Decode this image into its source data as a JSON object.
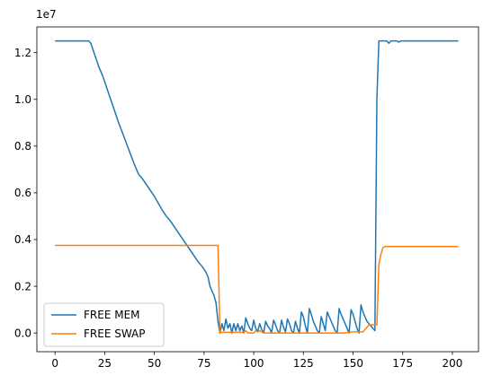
{
  "chart_data": {
    "type": "line",
    "xlim": [
      -9.15,
      213.15
    ],
    "ylim": [
      -0.08,
      1.31
    ],
    "y_offset_label": "1e7",
    "x_ticks": [
      0,
      25,
      50,
      75,
      100,
      125,
      150,
      175,
      200
    ],
    "x_tick_labels": [
      "0",
      "25",
      "50",
      "75",
      "100",
      "125",
      "150",
      "175",
      "200"
    ],
    "y_ticks": [
      0.0,
      0.2,
      0.4,
      0.6,
      0.8,
      1.0,
      1.2
    ],
    "y_tick_labels": [
      "0.0",
      "0.2",
      "0.4",
      "0.6",
      "0.8",
      "1.0",
      "1.2"
    ],
    "grid": false,
    "legend_position": "lower-left",
    "series": [
      {
        "name": "FREE MEM",
        "color": "#1f77b4",
        "points": [
          [
            0,
            1.25
          ],
          [
            17,
            1.25
          ],
          [
            18,
            1.24
          ],
          [
            20,
            1.19
          ],
          [
            22,
            1.14
          ],
          [
            24,
            1.1
          ],
          [
            26,
            1.05
          ],
          [
            28,
            1.0
          ],
          [
            30,
            0.95
          ],
          [
            32,
            0.9
          ],
          [
            34,
            0.855
          ],
          [
            36,
            0.81
          ],
          [
            38,
            0.765
          ],
          [
            40,
            0.72
          ],
          [
            42,
            0.68
          ],
          [
            44,
            0.66
          ],
          [
            46,
            0.635
          ],
          [
            48,
            0.61
          ],
          [
            50,
            0.585
          ],
          [
            52,
            0.555
          ],
          [
            54,
            0.525
          ],
          [
            56,
            0.5
          ],
          [
            58,
            0.48
          ],
          [
            60,
            0.455
          ],
          [
            62,
            0.43
          ],
          [
            64,
            0.405
          ],
          [
            66,
            0.38
          ],
          [
            68,
            0.355
          ],
          [
            70,
            0.33
          ],
          [
            72,
            0.305
          ],
          [
            74,
            0.285
          ],
          [
            76,
            0.26
          ],
          [
            77,
            0.24
          ],
          [
            78,
            0.2
          ],
          [
            80,
            0.16
          ],
          [
            81,
            0.13
          ],
          [
            82,
            0.05
          ],
          [
            83,
            0.0
          ],
          [
            84,
            0.04
          ],
          [
            85,
            0.01
          ],
          [
            86,
            0.06
          ],
          [
            87,
            0.02
          ],
          [
            88,
            0.04
          ],
          [
            89,
            0.0
          ],
          [
            90,
            0.04
          ],
          [
            91,
            0.01
          ],
          [
            92,
            0.04
          ],
          [
            93,
            0.01
          ],
          [
            94,
            0.03
          ],
          [
            95,
            0.0
          ],
          [
            96,
            0.065
          ],
          [
            97,
            0.04
          ],
          [
            98,
            0.02
          ],
          [
            99,
            0.01
          ],
          [
            100,
            0.055
          ],
          [
            101,
            0.02
          ],
          [
            102,
            0.005
          ],
          [
            103,
            0.04
          ],
          [
            104,
            0.015
          ],
          [
            105,
            0.0
          ],
          [
            106,
            0.05
          ],
          [
            107,
            0.03
          ],
          [
            108,
            0.02
          ],
          [
            109,
            0.0
          ],
          [
            110,
            0.055
          ],
          [
            111,
            0.035
          ],
          [
            112,
            0.01
          ],
          [
            113,
            0.0
          ],
          [
            114,
            0.055
          ],
          [
            115,
            0.025
          ],
          [
            116,
            0.005
          ],
          [
            117,
            0.06
          ],
          [
            118,
            0.04
          ],
          [
            119,
            0.01
          ],
          [
            120,
            0.0
          ],
          [
            121,
            0.05
          ],
          [
            122,
            0.02
          ],
          [
            123,
            0.0
          ],
          [
            124,
            0.09
          ],
          [
            125,
            0.07
          ],
          [
            126,
            0.03
          ],
          [
            127,
            0.0
          ],
          [
            128,
            0.105
          ],
          [
            129,
            0.08
          ],
          [
            130,
            0.05
          ],
          [
            131,
            0.03
          ],
          [
            132,
            0.01
          ],
          [
            133,
            0.0
          ],
          [
            134,
            0.07
          ],
          [
            135,
            0.04
          ],
          [
            136,
            0.01
          ],
          [
            137,
            0.09
          ],
          [
            138,
            0.07
          ],
          [
            139,
            0.05
          ],
          [
            140,
            0.03
          ],
          [
            141,
            0.01
          ],
          [
            142,
            0.0
          ],
          [
            143,
            0.105
          ],
          [
            144,
            0.08
          ],
          [
            145,
            0.06
          ],
          [
            146,
            0.04
          ],
          [
            147,
            0.02
          ],
          [
            148,
            0.0
          ],
          [
            149,
            0.1
          ],
          [
            150,
            0.08
          ],
          [
            151,
            0.05
          ],
          [
            152,
            0.02
          ],
          [
            153,
            0.0
          ],
          [
            154,
            0.12
          ],
          [
            155,
            0.09
          ],
          [
            156,
            0.07
          ],
          [
            157,
            0.05
          ],
          [
            158,
            0.04
          ],
          [
            159,
            0.03
          ],
          [
            160,
            0.02
          ],
          [
            161,
            0.01
          ],
          [
            162,
            1.0
          ],
          [
            163,
            1.25
          ],
          [
            167,
            1.25
          ],
          [
            168,
            1.24
          ],
          [
            169,
            1.25
          ],
          [
            172,
            1.25
          ],
          [
            173,
            1.245
          ],
          [
            174,
            1.25
          ],
          [
            203,
            1.25
          ]
        ]
      },
      {
        "name": "FREE SWAP",
        "color": "#ff7f0e",
        "points": [
          [
            0,
            0.375
          ],
          [
            82,
            0.375
          ],
          [
            83,
            0.003
          ],
          [
            90,
            0.003
          ],
          [
            95,
            0.003
          ],
          [
            96,
            0.01
          ],
          [
            97,
            0.0
          ],
          [
            100,
            0.0
          ],
          [
            101,
            0.01
          ],
          [
            102,
            0.005
          ],
          [
            103,
            0.01
          ],
          [
            104,
            0.005
          ],
          [
            105,
            0.0
          ],
          [
            110,
            0.0
          ],
          [
            115,
            0.0
          ],
          [
            120,
            0.0
          ],
          [
            125,
            0.0
          ],
          [
            130,
            0.0
          ],
          [
            135,
            0.0
          ],
          [
            140,
            0.0
          ],
          [
            145,
            0.0
          ],
          [
            150,
            0.005
          ],
          [
            155,
            0.005
          ],
          [
            158,
            0.035
          ],
          [
            160,
            0.035
          ],
          [
            162,
            0.035
          ],
          [
            163,
            0.295
          ],
          [
            164,
            0.335
          ],
          [
            165,
            0.365
          ],
          [
            166,
            0.37
          ],
          [
            203,
            0.37
          ]
        ]
      }
    ]
  }
}
